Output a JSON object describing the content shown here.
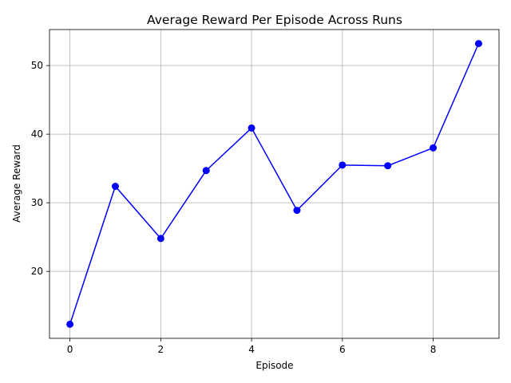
{
  "chart_data": {
    "type": "line",
    "title": "Average Reward Per Episode Across Runs",
    "xlabel": "Episode",
    "ylabel": "Average Reward",
    "x": [
      0,
      1,
      2,
      3,
      4,
      5,
      6,
      7,
      8,
      9
    ],
    "series": [
      {
        "values": [
          12.3,
          32.4,
          24.8,
          34.7,
          40.9,
          28.9,
          35.5,
          35.4,
          38.0,
          53.2
        ],
        "color": "#0000ff",
        "marker": "circle"
      }
    ],
    "xlim": [
      -0.45,
      9.45
    ],
    "ylim": [
      10.25,
      55.25
    ],
    "xticks": [
      0,
      2,
      4,
      6,
      8
    ],
    "yticks": [
      20,
      30,
      40,
      50
    ],
    "grid": true,
    "grid_color": "#b0b0b0"
  }
}
